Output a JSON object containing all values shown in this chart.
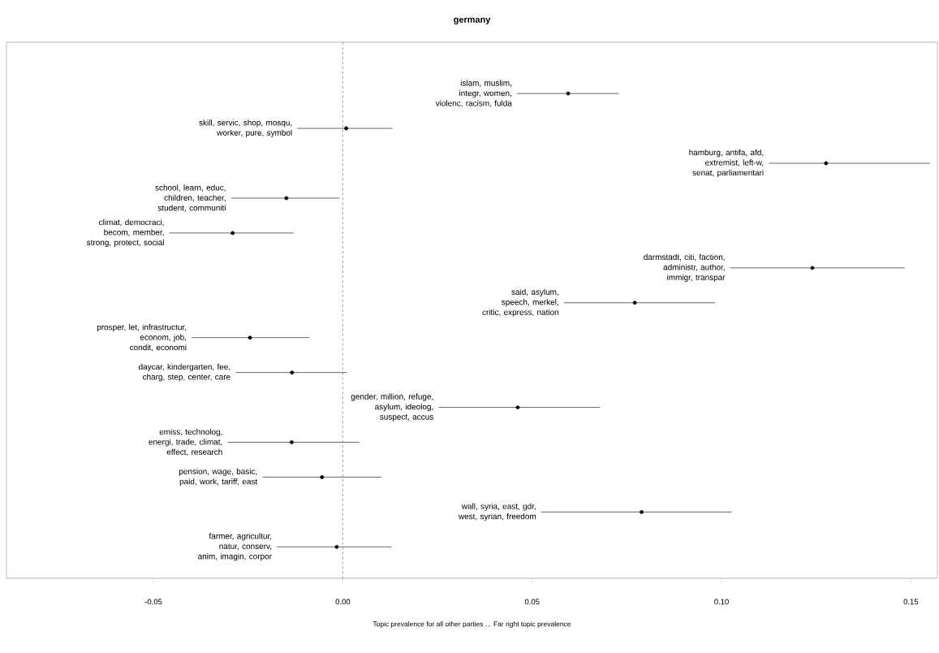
{
  "chart_data": {
    "type": "scatter",
    "orientation": "horizontal",
    "title": "germany",
    "xlabel": "Topic prevalence for all other parties ... Far right topic prevalence",
    "categories": [
      "islam, muslim, integr, women, violenc, racism, fulda",
      "skill, servic, shop, mosqu, worker, pure, symbol",
      "hamburg, antifa, afd, extremist, left-w, senat, parliamentari",
      "school, learn, educ, children, teacher, student, communiti",
      "climat, democraci, becom, member, strong, protect, social",
      "darmstadt, citi, faction, administr, author, immigr, transpar",
      "said, asylum, speech, merkel, critic, express, nation",
      "prosper, let, infrastructur, econom, job, condit, economi",
      "daycar, kindergarten, fee, charg, step, center, care",
      "gender, million, refuge, asylum, ideolog, suspect, accus",
      "emiss, technolog, energi, trade, climat, effect, research",
      "pension, wage, basic, paid, work, tariff, east",
      "wall, syria, east, gdr, west, syrian, freedom",
      "farmer, agricultur, natur, conserv, anim, imagin, corpor"
    ],
    "values": [
      0.0595,
      0.0009,
      0.1276,
      -0.0149,
      -0.0291,
      0.124,
      0.0771,
      -0.0245,
      -0.0134,
      0.0462,
      -0.0135,
      -0.0055,
      0.0789,
      -0.0016
    ],
    "errors": [
      [
        0.046,
        0.0729
      ],
      [
        -0.012,
        0.0131
      ],
      [
        0.1125,
        0.1551
      ],
      [
        -0.0295,
        -0.0008
      ],
      [
        -0.0458,
        -0.013
      ],
      [
        0.1023,
        0.1484
      ],
      [
        0.0584,
        0.0983
      ],
      [
        -0.0399,
        -0.0088
      ],
      [
        -0.0283,
        0.0011
      ],
      [
        0.0253,
        0.0679
      ],
      [
        -0.0304,
        0.0044
      ],
      [
        -0.0212,
        0.0102
      ],
      [
        0.0524,
        0.1027
      ],
      [
        -0.0174,
        0.0129
      ]
    ],
    "color": "#000000",
    "marker": "circle",
    "xlim": [
      -0.0888,
      0.157
    ],
    "xticks": [
      {
        "value": -0.05,
        "label": "-0.05"
      },
      {
        "value": 0,
        "label": "0.00"
      },
      {
        "value": 0.05,
        "label": "0.05"
      },
      {
        "value": 0.1,
        "label": "0.10"
      },
      {
        "value": 0.15,
        "label": "0.15"
      }
    ],
    "ref_lines": [
      {
        "axis": "x",
        "value": 0,
        "color": "#888888",
        "line_style": "dashed"
      }
    ],
    "tick_labels": "x"
  }
}
